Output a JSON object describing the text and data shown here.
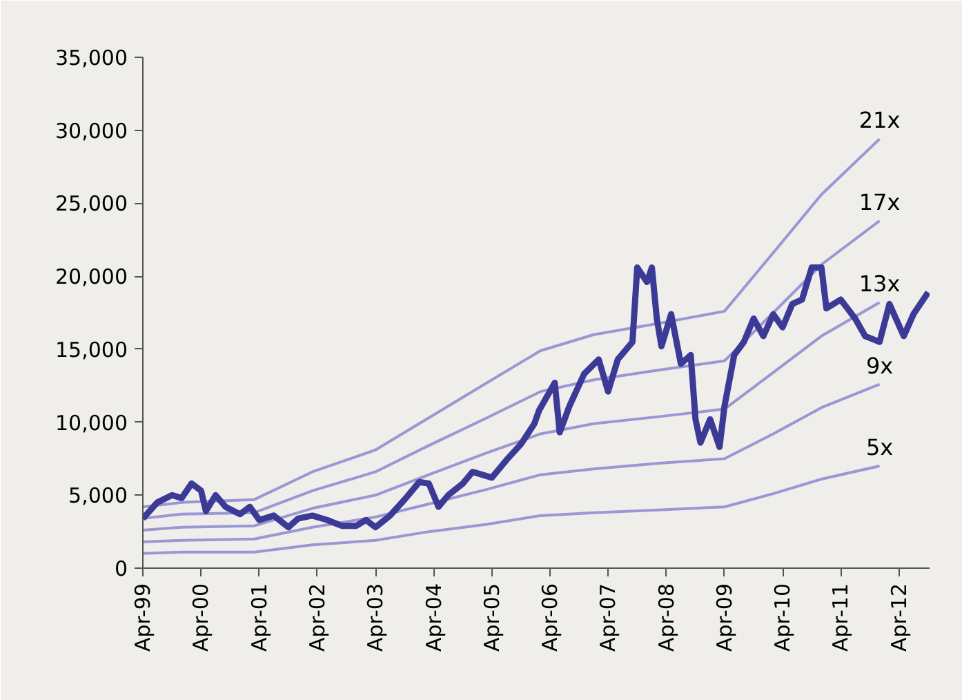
{
  "chart_data": {
    "type": "line",
    "xlim": [
      "1999-04",
      "2012-10-10"
    ],
    "xticks": [
      {
        "value": "1999-04",
        "label": "Apr-99"
      },
      {
        "value": "2000-04",
        "label": "Apr-00"
      },
      {
        "value": "2001-04",
        "label": "Apr-01"
      },
      {
        "value": "2002-04",
        "label": "Apr-02"
      },
      {
        "value": "2003-04",
        "label": "Apr-03"
      },
      {
        "value": "2004-04",
        "label": "Apr-04"
      },
      {
        "value": "2005-04",
        "label": "Apr-05"
      },
      {
        "value": "2006-04",
        "label": "Apr-06"
      },
      {
        "value": "2007-04",
        "label": "Apr-07"
      },
      {
        "value": "2008-04",
        "label": "Apr-08"
      },
      {
        "value": "2009-04",
        "label": "Apr-09"
      },
      {
        "value": "2010-04",
        "label": "Apr-10"
      },
      {
        "value": "2011-04",
        "label": "Apr-11"
      },
      {
        "value": "2012-04",
        "label": "Apr-12"
      }
    ],
    "ylim": [
      0,
      35000
    ],
    "yticks": [
      0,
      {
        "value": 5000,
        "label": "5,000"
      },
      {
        "value": 10000,
        "label": "10,000"
      },
      {
        "value": 15000,
        "label": "15,000"
      },
      {
        "value": 20000,
        "label": "20,000"
      },
      {
        "value": 25000,
        "label": "25,000"
      },
      {
        "value": 30000,
        "label": "30,000"
      },
      {
        "value": 35000,
        "label": "35,000"
      }
    ],
    "grid": false,
    "marker": "none",
    "line_style": "solid",
    "series": [
      {
        "name": "5x",
        "color": "#9a97d4",
        "x": [
          "1999-04",
          "1999-12",
          "2001-03",
          "2002-03",
          "2003-04",
          "2004-03",
          "2005-03",
          "2006-02",
          "2007-01",
          "2008-03",
          "2009-04",
          "2010-02",
          "2010-12",
          "2011-12"
        ],
        "values": [
          1000,
          1100,
          1100,
          1600,
          1900,
          2500,
          3000,
          3600,
          3800,
          4000,
          4200,
          5100,
          6100,
          7000
        ]
      },
      {
        "name": "9x",
        "color": "#9a97d4",
        "x": [
          "1999-04",
          "1999-12",
          "2001-03",
          "2002-03",
          "2003-04",
          "2004-03",
          "2005-03",
          "2006-02",
          "2007-01",
          "2008-03",
          "2009-04",
          "2010-02",
          "2010-12",
          "2011-12"
        ],
        "values": [
          1800,
          1900,
          2000,
          2800,
          3500,
          4400,
          5400,
          6400,
          6800,
          7200,
          7500,
          9200,
          11000,
          12600
        ]
      },
      {
        "name": "13x",
        "color": "#9a97d4",
        "x": [
          "1999-04",
          "1999-12",
          "2001-03",
          "2002-03",
          "2003-04",
          "2004-03",
          "2005-03",
          "2006-02",
          "2007-01",
          "2008-03",
          "2009-04",
          "2010-02",
          "2010-12",
          "2011-12"
        ],
        "values": [
          2600,
          2800,
          2900,
          4100,
          5000,
          6400,
          7900,
          9200,
          9900,
          10400,
          10900,
          13400,
          15900,
          18200
        ]
      },
      {
        "name": "17x",
        "color": "#9a97d4",
        "x": [
          "1999-04",
          "1999-12",
          "2001-03",
          "2002-03",
          "2003-04",
          "2004-03",
          "2005-03",
          "2006-02",
          "2007-01",
          "2008-03",
          "2009-04",
          "2010-02",
          "2010-12",
          "2011-12"
        ],
        "values": [
          3400,
          3700,
          3800,
          5300,
          6600,
          8400,
          10300,
          12100,
          12900,
          13600,
          14200,
          17500,
          20800,
          23800
        ]
      },
      {
        "name": "21x",
        "color": "#9a97d4",
        "x": [
          "1999-04",
          "1999-12",
          "2001-03",
          "2002-03",
          "2003-04",
          "2004-03",
          "2005-03",
          "2006-02",
          "2007-01",
          "2008-03",
          "2009-04",
          "2010-02",
          "2010-12",
          "2011-12"
        ],
        "values": [
          4200,
          4500,
          4700,
          6600,
          8100,
          10300,
          12700,
          14900,
          16000,
          16800,
          17600,
          21600,
          25600,
          29400
        ]
      },
      {
        "color": "#3b3a96",
        "x": [
          "1999-04",
          "1999-07",
          "1999-10",
          "1999-12",
          "2000-02",
          "2000-04",
          "2000-05",
          "2000-07",
          "2000-09",
          "2000-12",
          "2001-02",
          "2001-04",
          "2001-07",
          "2001-10",
          "2001-12",
          "2002-03",
          "2002-06",
          "2002-09",
          "2002-12",
          "2003-02",
          "2003-04",
          "2003-07",
          "2003-10",
          "2004-01",
          "2004-03",
          "2004-05",
          "2004-07",
          "2004-10",
          "2004-12",
          "2005-04",
          "2005-07",
          "2005-10",
          "2005-12-24",
          "2006-01-22",
          "2006-05",
          "2006-06",
          "2006-08",
          "2006-11",
          "2007-02",
          "2007-04",
          "2007-06",
          "2007-09",
          "2007-10",
          "2007-12",
          "2008-01",
          "2008-02",
          "2008-03",
          "2008-05",
          "2008-07",
          "2008-09",
          "2008-10",
          "2008-11",
          "2009-01",
          "2009-03",
          "2009-04",
          "2009-06",
          "2009-08",
          "2009-10",
          "2009-12",
          "2010-02",
          "2010-04",
          "2010-06",
          "2010-08",
          "2010-10",
          "2010-12",
          "2011-01",
          "2011-04",
          "2011-07",
          "2011-09",
          "2011-12",
          "2012-02",
          "2012-05",
          "2012-07",
          "2012-10"
        ],
        "values": [
          3400,
          4500,
          5000,
          4800,
          5800,
          5300,
          3900,
          5000,
          4200,
          3700,
          4200,
          3300,
          3600,
          2800,
          3400,
          3600,
          3300,
          2900,
          2900,
          3300,
          2800,
          3600,
          4700,
          5900,
          5800,
          4200,
          5000,
          5800,
          6600,
          6200,
          7400,
          8500,
          9900,
          10800,
          12700,
          9300,
          11100,
          13300,
          14300,
          12100,
          14300,
          15500,
          20600,
          19600,
          20600,
          17100,
          15200,
          17400,
          14000,
          14600,
          10200,
          8600,
          10200,
          8300,
          11100,
          14600,
          15500,
          17100,
          15900,
          17400,
          16500,
          18100,
          18400,
          20600,
          20600,
          17800,
          18400,
          17100,
          15900,
          15500,
          18100,
          15900,
          17400,
          18900
        ]
      }
    ]
  }
}
